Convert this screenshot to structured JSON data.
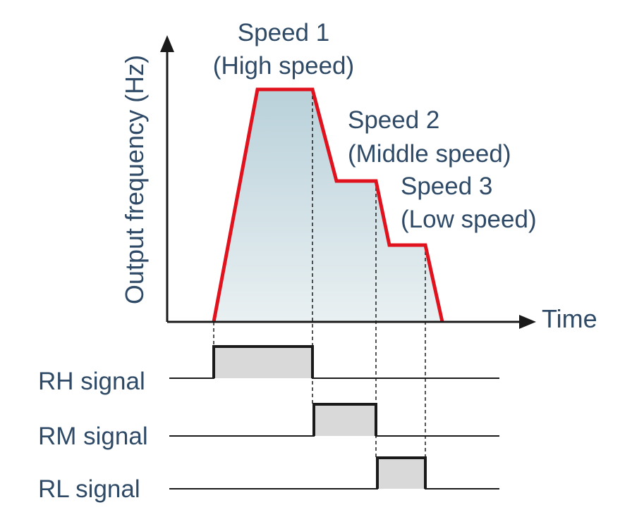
{
  "axes": {
    "y_label": "Output frequency (Hz)",
    "x_label": "Time"
  },
  "speeds": [
    {
      "title": "Speed 1",
      "subtitle": "(High speed)"
    },
    {
      "title": "Speed 2",
      "subtitle": "(Middle speed)"
    },
    {
      "title": "Speed 3",
      "subtitle": "(Low speed)"
    }
  ],
  "signals": [
    {
      "label": "RH signal"
    },
    {
      "label": "RM signal"
    },
    {
      "label": "RL signal"
    }
  ],
  "colors": {
    "curve": "#e0121e",
    "area_top": "#b9d1da",
    "area_bottom": "#e9f0f2",
    "pulse_fill": "#d9d9d9",
    "axis": "#1a1a1a",
    "text": "#2f4a66"
  }
}
